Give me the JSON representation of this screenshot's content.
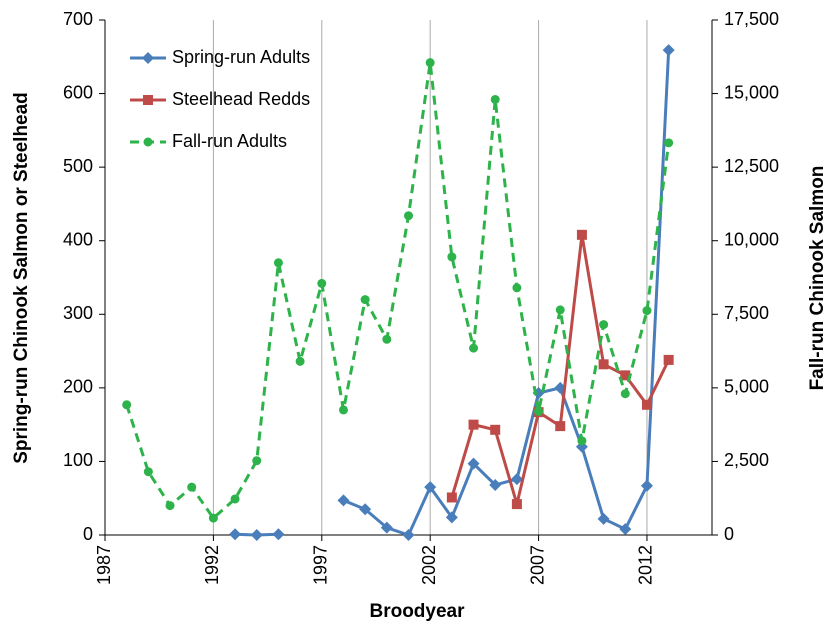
{
  "chart_data": {
    "type": "line",
    "x_label": "Broodyear",
    "y_label": "Spring-run Chinook Salmon or Steelhead",
    "y2_label": "Fall-run Chinook Salmon",
    "x": [
      1988,
      1989,
      1990,
      1991,
      1992,
      1993,
      1994,
      1995,
      1996,
      1997,
      1998,
      1999,
      2000,
      2001,
      2002,
      2003,
      2004,
      2005,
      2006,
      2007,
      2008,
      2009,
      2010,
      2011,
      2012,
      2013
    ],
    "xlim": [
      1987,
      2015
    ],
    "xticks": [
      1987,
      1992,
      1997,
      2002,
      2007,
      2012
    ],
    "ylim": [
      0,
      700
    ],
    "yticks": [
      0,
      100,
      200,
      300,
      400,
      500,
      600,
      700
    ],
    "y2lim": [
      0,
      17500
    ],
    "y2ticks": [
      0,
      {
        "value": 2500,
        "label": "2,500"
      },
      {
        "value": 5000,
        "label": "5,000"
      },
      {
        "value": 7500,
        "label": "7,500"
      },
      {
        "value": 10000,
        "label": "10,000"
      },
      {
        "value": 12500,
        "label": "12,500"
      },
      {
        "value": 15000,
        "label": "15,000"
      },
      {
        "value": 17500,
        "label": "17,500"
      }
    ],
    "grid": "x",
    "legend": "upper left",
    "series": [
      {
        "name": "Spring-run Adults",
        "color": "#4a7ebb",
        "marker": "diamond",
        "dashed": false,
        "values": [
          null,
          null,
          null,
          null,
          null,
          1,
          0,
          1,
          null,
          null,
          47,
          35,
          10,
          0,
          65,
          24,
          97,
          68,
          76,
          193,
          200,
          120,
          22,
          8,
          67,
          659
        ]
      },
      {
        "name": "Steelhead Redds",
        "color": "#be4b48",
        "marker": "square",
        "dashed": false,
        "values": [
          null,
          null,
          null,
          null,
          null,
          null,
          null,
          null,
          null,
          null,
          null,
          null,
          null,
          null,
          null,
          51,
          150,
          143,
          42,
          167,
          148,
          408,
          232,
          217,
          177,
          238
        ]
      },
      {
        "name": "Fall-run Adults",
        "color": "#2db34a",
        "marker": "circle",
        "dashed": true,
        "axis": "y2",
        "values": [
          4425,
          2150,
          1000,
          1625,
          575,
          1225,
          2525,
          9250,
          5900,
          8550,
          4250,
          8000,
          6650,
          10850,
          16050,
          9450,
          6350,
          14800,
          8400,
          4200,
          7650,
          3200,
          7150,
          4800,
          7625,
          13325
        ]
      }
    ]
  }
}
